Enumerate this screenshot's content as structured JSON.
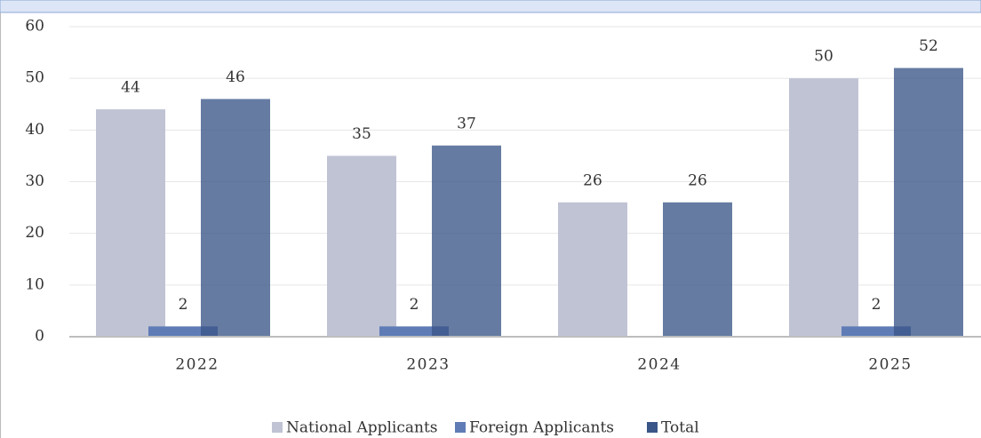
{
  "chart_data": {
    "type": "bar",
    "categories": [
      "2022",
      "2023",
      "2024",
      "2025"
    ],
    "series": [
      {
        "name": "National Applicants",
        "color": "#bfc3d4",
        "values": [
          44,
          35,
          26,
          50
        ]
      },
      {
        "name": "Foreign Applicants",
        "color": "#5f7cb6",
        "values": [
          2,
          2,
          null,
          2
        ]
      },
      {
        "name": "Total",
        "color": "#3a5688",
        "values": [
          46,
          37,
          26,
          52
        ]
      }
    ],
    "ylim": [
      0,
      60
    ],
    "yticks": [
      0,
      10,
      20,
      30,
      40,
      50,
      60
    ],
    "grid": true,
    "legend": "bottom"
  }
}
